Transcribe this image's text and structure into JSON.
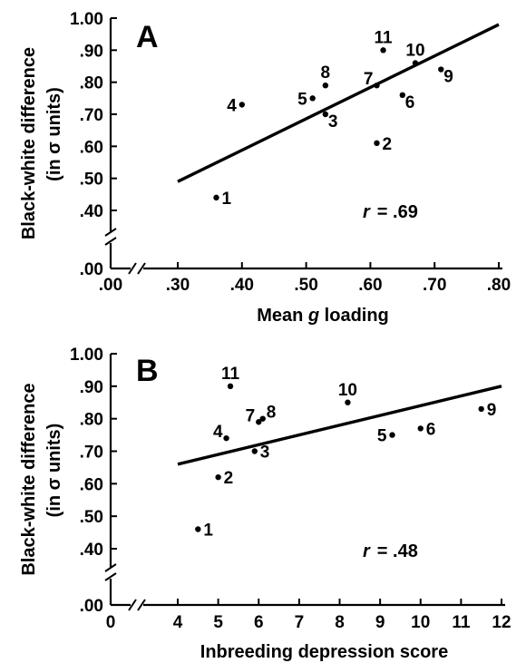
{
  "chart_data": [
    {
      "type": "scatter",
      "panel_label": "A",
      "xlabel_pre": "Mean ",
      "xlabel_italic": "g",
      "xlabel_post": " loading",
      "ylabel_line1": "Black-white difference",
      "ylabel_line2": "(in σ units)",
      "x_tick_labels": [
        ".00",
        ".30",
        ".40",
        ".50",
        ".60",
        ".70",
        ".80"
      ],
      "x_tick_values": [
        0.0,
        0.3,
        0.4,
        0.5,
        0.6,
        0.7,
        0.8
      ],
      "x_break": true,
      "xlim": [
        0.3,
        0.8
      ],
      "y_tick_labels": [
        ".00",
        ".40",
        ".50",
        ".60",
        ".70",
        ".80",
        ".90",
        "1.00"
      ],
      "y_tick_values": [
        0.0,
        0.4,
        0.5,
        0.6,
        0.7,
        0.8,
        0.9,
        1.0
      ],
      "y_break": true,
      "ylim": [
        0.4,
        1.0
      ],
      "points": [
        {
          "label": "1",
          "x": 0.36,
          "y": 0.44,
          "label_pos": "right"
        },
        {
          "label": "2",
          "x": 0.61,
          "y": 0.61,
          "label_pos": "right"
        },
        {
          "label": "3",
          "x": 0.53,
          "y": 0.7,
          "label_pos": "right-below"
        },
        {
          "label": "4",
          "x": 0.4,
          "y": 0.73,
          "label_pos": "left"
        },
        {
          "label": "5",
          "x": 0.51,
          "y": 0.75,
          "label_pos": "left"
        },
        {
          "label": "6",
          "x": 0.65,
          "y": 0.76,
          "label_pos": "right-below"
        },
        {
          "label": "7",
          "x": 0.61,
          "y": 0.79,
          "label_pos": "left-above"
        },
        {
          "label": "8",
          "x": 0.53,
          "y": 0.79,
          "label_pos": "above"
        },
        {
          "label": "9",
          "x": 0.71,
          "y": 0.84,
          "label_pos": "right-below"
        },
        {
          "label": "10",
          "x": 0.67,
          "y": 0.86,
          "label_pos": "above"
        },
        {
          "label": "11",
          "x": 0.62,
          "y": 0.9,
          "label_pos": "above"
        }
      ],
      "fit_line": {
        "x": [
          0.3,
          0.8
        ],
        "y": [
          0.49,
          0.98
        ]
      },
      "r_label": "r",
      "r_value": "= .69"
    },
    {
      "type": "scatter",
      "panel_label": "B",
      "xlabel": "Inbreeding depression score",
      "ylabel_line1": "Black-white difference",
      "ylabel_line2": "(in σ units)",
      "x_tick_labels": [
        "0",
        "4",
        "5",
        "6",
        "7",
        "8",
        "9",
        "10",
        "11",
        "12"
      ],
      "x_tick_values": [
        0,
        4,
        5,
        6,
        7,
        8,
        9,
        10,
        11,
        12
      ],
      "x_break": true,
      "xlim": [
        4,
        12
      ],
      "y_tick_labels": [
        ".00",
        ".40",
        ".50",
        ".60",
        ".70",
        ".80",
        ".90",
        "1.00"
      ],
      "y_tick_values": [
        0.0,
        0.4,
        0.5,
        0.6,
        0.7,
        0.8,
        0.9,
        1.0
      ],
      "y_break": true,
      "ylim": [
        0.4,
        1.0
      ],
      "points": [
        {
          "label": "1",
          "x": 4.5,
          "y": 0.46,
          "label_pos": "right"
        },
        {
          "label": "2",
          "x": 5.0,
          "y": 0.62,
          "label_pos": "right"
        },
        {
          "label": "3",
          "x": 5.9,
          "y": 0.7,
          "label_pos": "right"
        },
        {
          "label": "4",
          "x": 5.2,
          "y": 0.74,
          "label_pos": "left-above"
        },
        {
          "label": "5",
          "x": 9.3,
          "y": 0.75,
          "label_pos": "left"
        },
        {
          "label": "6",
          "x": 10.0,
          "y": 0.77,
          "label_pos": "right"
        },
        {
          "label": "7",
          "x": 6.0,
          "y": 0.79,
          "label_pos": "left-above"
        },
        {
          "label": "8",
          "x": 6.1,
          "y": 0.8,
          "label_pos": "right-above"
        },
        {
          "label": "9",
          "x": 11.5,
          "y": 0.83,
          "label_pos": "right"
        },
        {
          "label": "10",
          "x": 8.2,
          "y": 0.85,
          "label_pos": "above"
        },
        {
          "label": "11",
          "x": 5.3,
          "y": 0.9,
          "label_pos": "above"
        }
      ],
      "fit_line": {
        "x": [
          4,
          12
        ],
        "y": [
          0.66,
          0.9
        ]
      },
      "r_label": "r",
      "r_value": "= .48"
    }
  ]
}
